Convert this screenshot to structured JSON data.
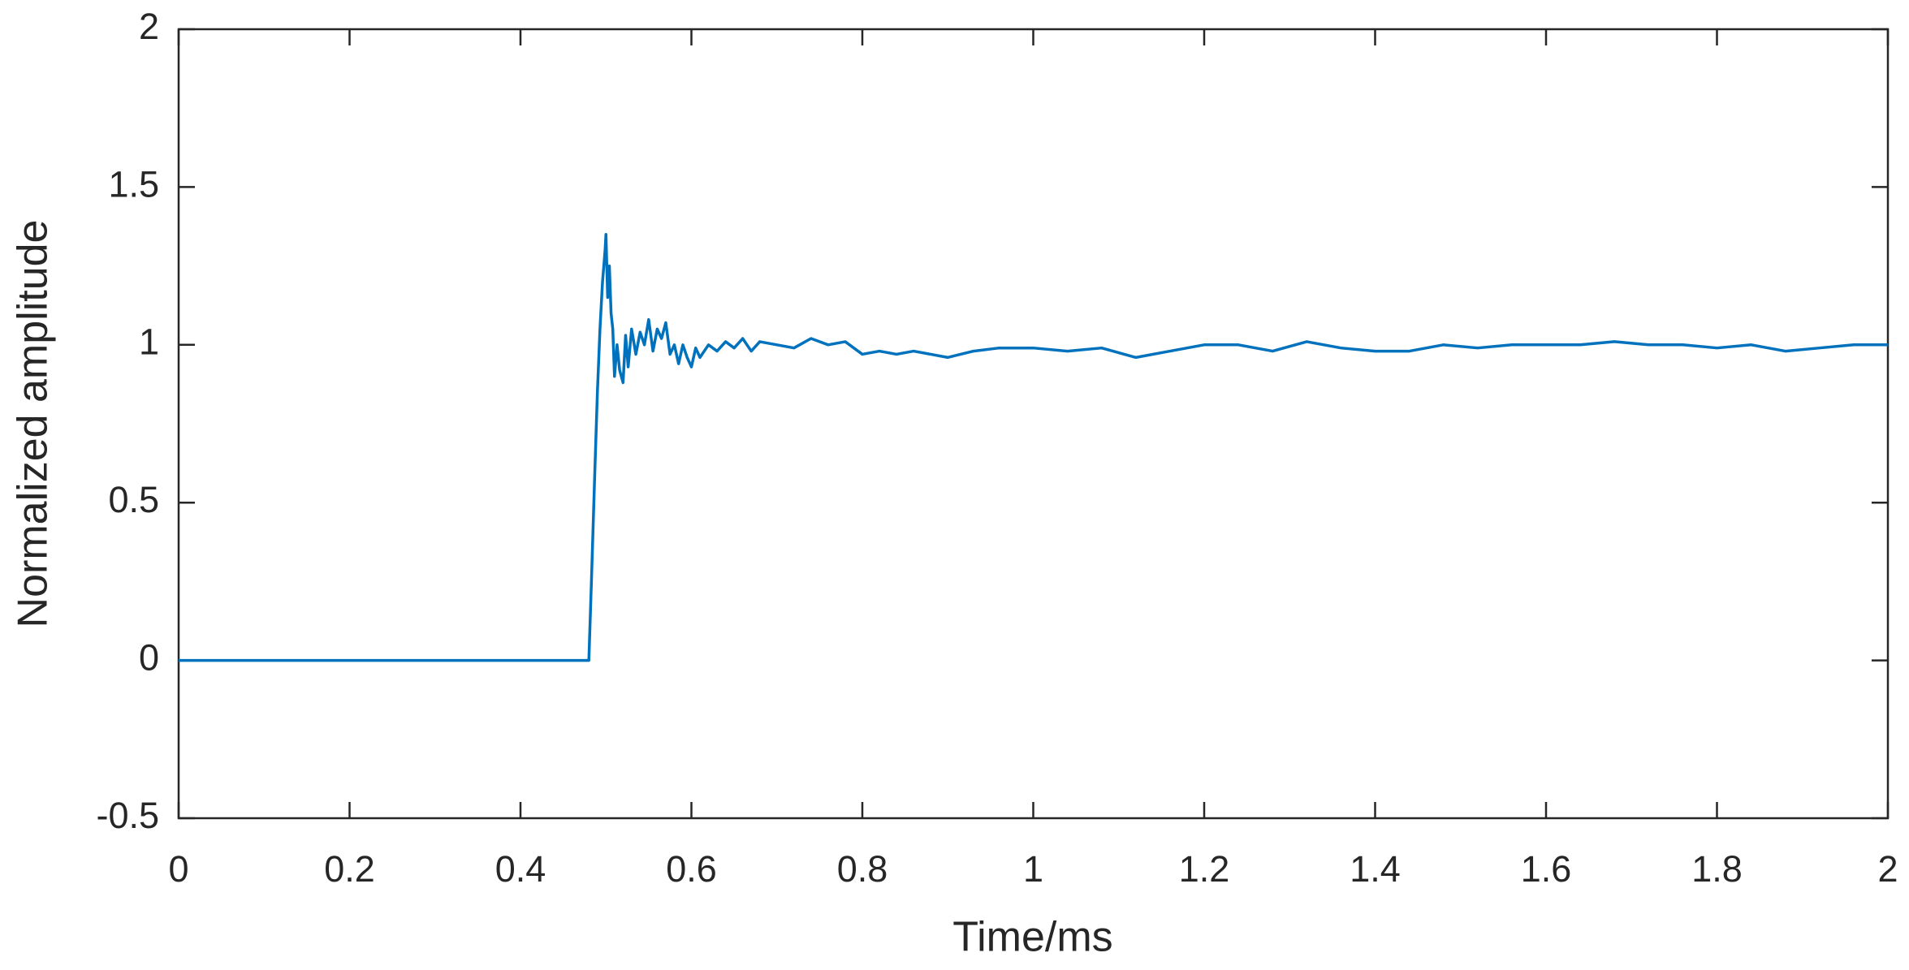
{
  "chart_data": {
    "type": "line",
    "xlabel": "Time/ms",
    "ylabel": "Normalized amplitude",
    "x": [
      0,
      0.48,
      0.483,
      0.487,
      0.49,
      0.493,
      0.496,
      0.499,
      0.5,
      0.502,
      0.504,
      0.506,
      0.508,
      0.51,
      0.513,
      0.516,
      0.52,
      0.523,
      0.526,
      0.53,
      0.535,
      0.54,
      0.545,
      0.55,
      0.555,
      0.56,
      0.565,
      0.57,
      0.575,
      0.58,
      0.585,
      0.59,
      0.595,
      0.6,
      0.605,
      0.61,
      0.62,
      0.63,
      0.64,
      0.65,
      0.66,
      0.67,
      0.68,
      0.7,
      0.72,
      0.74,
      0.76,
      0.78,
      0.8,
      0.82,
      0.84,
      0.86,
      0.88,
      0.9,
      0.93,
      0.96,
      1.0,
      1.04,
      1.08,
      1.12,
      1.16,
      1.2,
      1.24,
      1.28,
      1.32,
      1.36,
      1.4,
      1.44,
      1.48,
      1.52,
      1.56,
      1.6,
      1.64,
      1.68,
      1.72,
      1.76,
      1.8,
      1.84,
      1.88,
      1.92,
      1.96,
      2.0
    ],
    "values": [
      0,
      0,
      0.25,
      0.6,
      0.85,
      1.05,
      1.2,
      1.3,
      1.35,
      1.15,
      1.25,
      1.1,
      1.05,
      0.9,
      1.0,
      0.92,
      0.88,
      1.03,
      0.93,
      1.05,
      0.97,
      1.04,
      1.0,
      1.08,
      0.98,
      1.05,
      1.02,
      1.07,
      0.97,
      1.0,
      0.94,
      1.0,
      0.96,
      0.93,
      0.99,
      0.96,
      1.0,
      0.98,
      1.01,
      0.99,
      1.02,
      0.98,
      1.01,
      1.0,
      0.99,
      1.02,
      1.0,
      1.01,
      0.97,
      0.98,
      0.97,
      0.98,
      0.97,
      0.96,
      0.98,
      0.99,
      0.99,
      0.98,
      0.99,
      0.96,
      0.98,
      1.0,
      1.0,
      0.98,
      1.01,
      0.99,
      0.98,
      0.98,
      1.0,
      0.99,
      1.0,
      1.0,
      1.0,
      1.01,
      1.0,
      1.0,
      0.99,
      1.0,
      0.98,
      0.99,
      1.0,
      1.0
    ],
    "color": "#0072bd",
    "xlim": [
      0,
      2
    ],
    "xticks": [
      0,
      0.2,
      0.4,
      0.6,
      0.8,
      1,
      1.2,
      1.4,
      1.6,
      1.8,
      2
    ],
    "ylim": [
      -0.5,
      2
    ],
    "yticks": [
      -0.5,
      0,
      0.5,
      1,
      1.5,
      2
    ]
  }
}
